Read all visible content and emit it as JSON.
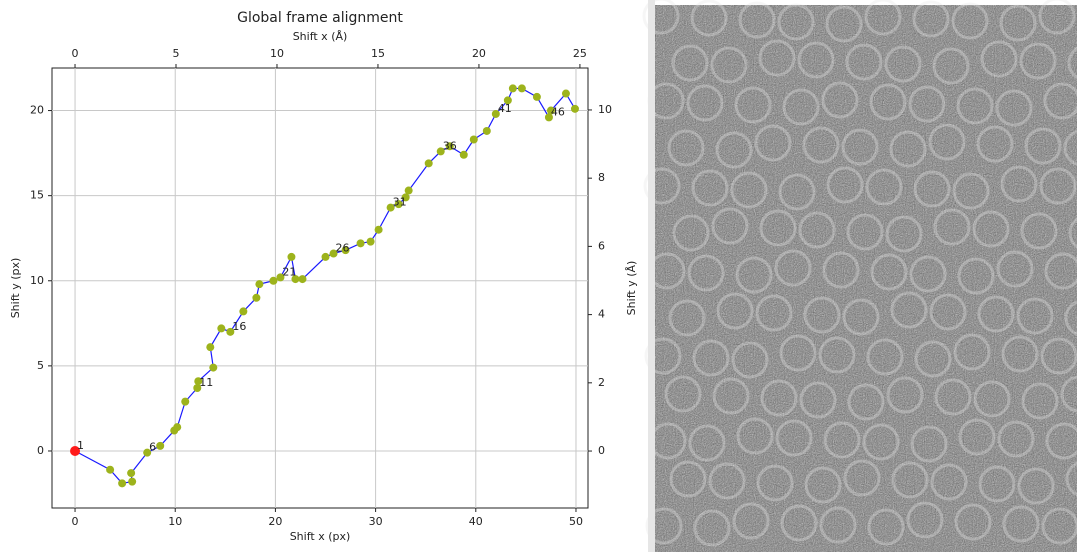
{
  "chart_data": {
    "type": "line",
    "title": "Global frame alignment",
    "xlabel": "Shift x (px)",
    "ylabel": "Shift y (px)",
    "x2label": "Shift x (Å)",
    "y2label": "Shift y (Å)",
    "x": [
      0,
      3.5,
      4.7,
      5.7,
      5.6,
      7.2,
      8.5,
      9.9,
      10.2,
      11,
      12.2,
      12.3,
      13.8,
      13.5,
      14.6,
      15.5,
      16.8,
      18.1,
      18.4,
      19.8,
      20.5,
      21.6,
      22.0,
      22.7,
      25.0,
      25.8,
      27.0,
      28.5,
      29.5,
      30.3,
      31.5,
      32.3,
      33.0,
      33.3,
      35.3,
      36.5,
      37.4,
      38.8,
      39.8,
      41.1,
      42.0,
      43.2,
      43.7,
      44.6,
      46.1,
      47.3,
      47.5,
      49.0,
      49.9
    ],
    "y": [
      0,
      -1.1,
      -1.9,
      -1.8,
      -1.3,
      -0.1,
      0.3,
      1.2,
      1.4,
      2.9,
      3.7,
      4.1,
      4.9,
      6.1,
      7.2,
      7.0,
      8.2,
      9.0,
      9.8,
      10.0,
      10.2,
      11.4,
      10.1,
      10.1,
      11.4,
      11.6,
      11.8,
      12.2,
      12.3,
      13.0,
      14.3,
      14.5,
      14.9,
      15.3,
      16.9,
      17.6,
      17.9,
      17.4,
      18.3,
      18.8,
      19.8,
      20.6,
      21.3,
      21.3,
      20.8,
      19.6,
      20.0,
      21.0,
      20.1
    ],
    "point_labels": [
      "1",
      null,
      null,
      null,
      null,
      "6",
      null,
      null,
      null,
      null,
      "11",
      null,
      null,
      null,
      null,
      "16",
      null,
      null,
      null,
      null,
      "21",
      null,
      null,
      null,
      null,
      "26",
      null,
      null,
      null,
      null,
      "31",
      null,
      null,
      null,
      null,
      "36",
      null,
      null,
      null,
      null,
      "41",
      null,
      null,
      null,
      null,
      "46",
      null,
      null,
      null
    ],
    "line_color": "#1a1aff",
    "marker_color": "#9db31c",
    "first_marker_color": "#ff1a1a",
    "xlim": [
      -2.3,
      51.2
    ],
    "ylim": [
      -3.35,
      22.5
    ],
    "x2lim": [
      -1.14,
      25.4
    ],
    "y2lim": [
      -1.67,
      11.23
    ],
    "xticks": [
      0,
      10,
      20,
      30,
      40,
      50
    ],
    "yticks": [
      0,
      5,
      10,
      15,
      20
    ],
    "x2ticks": [
      0,
      5,
      10,
      15,
      20,
      25
    ],
    "y2ticks": [
      0,
      2,
      4,
      6,
      8,
      10
    ],
    "grid": true
  }
}
